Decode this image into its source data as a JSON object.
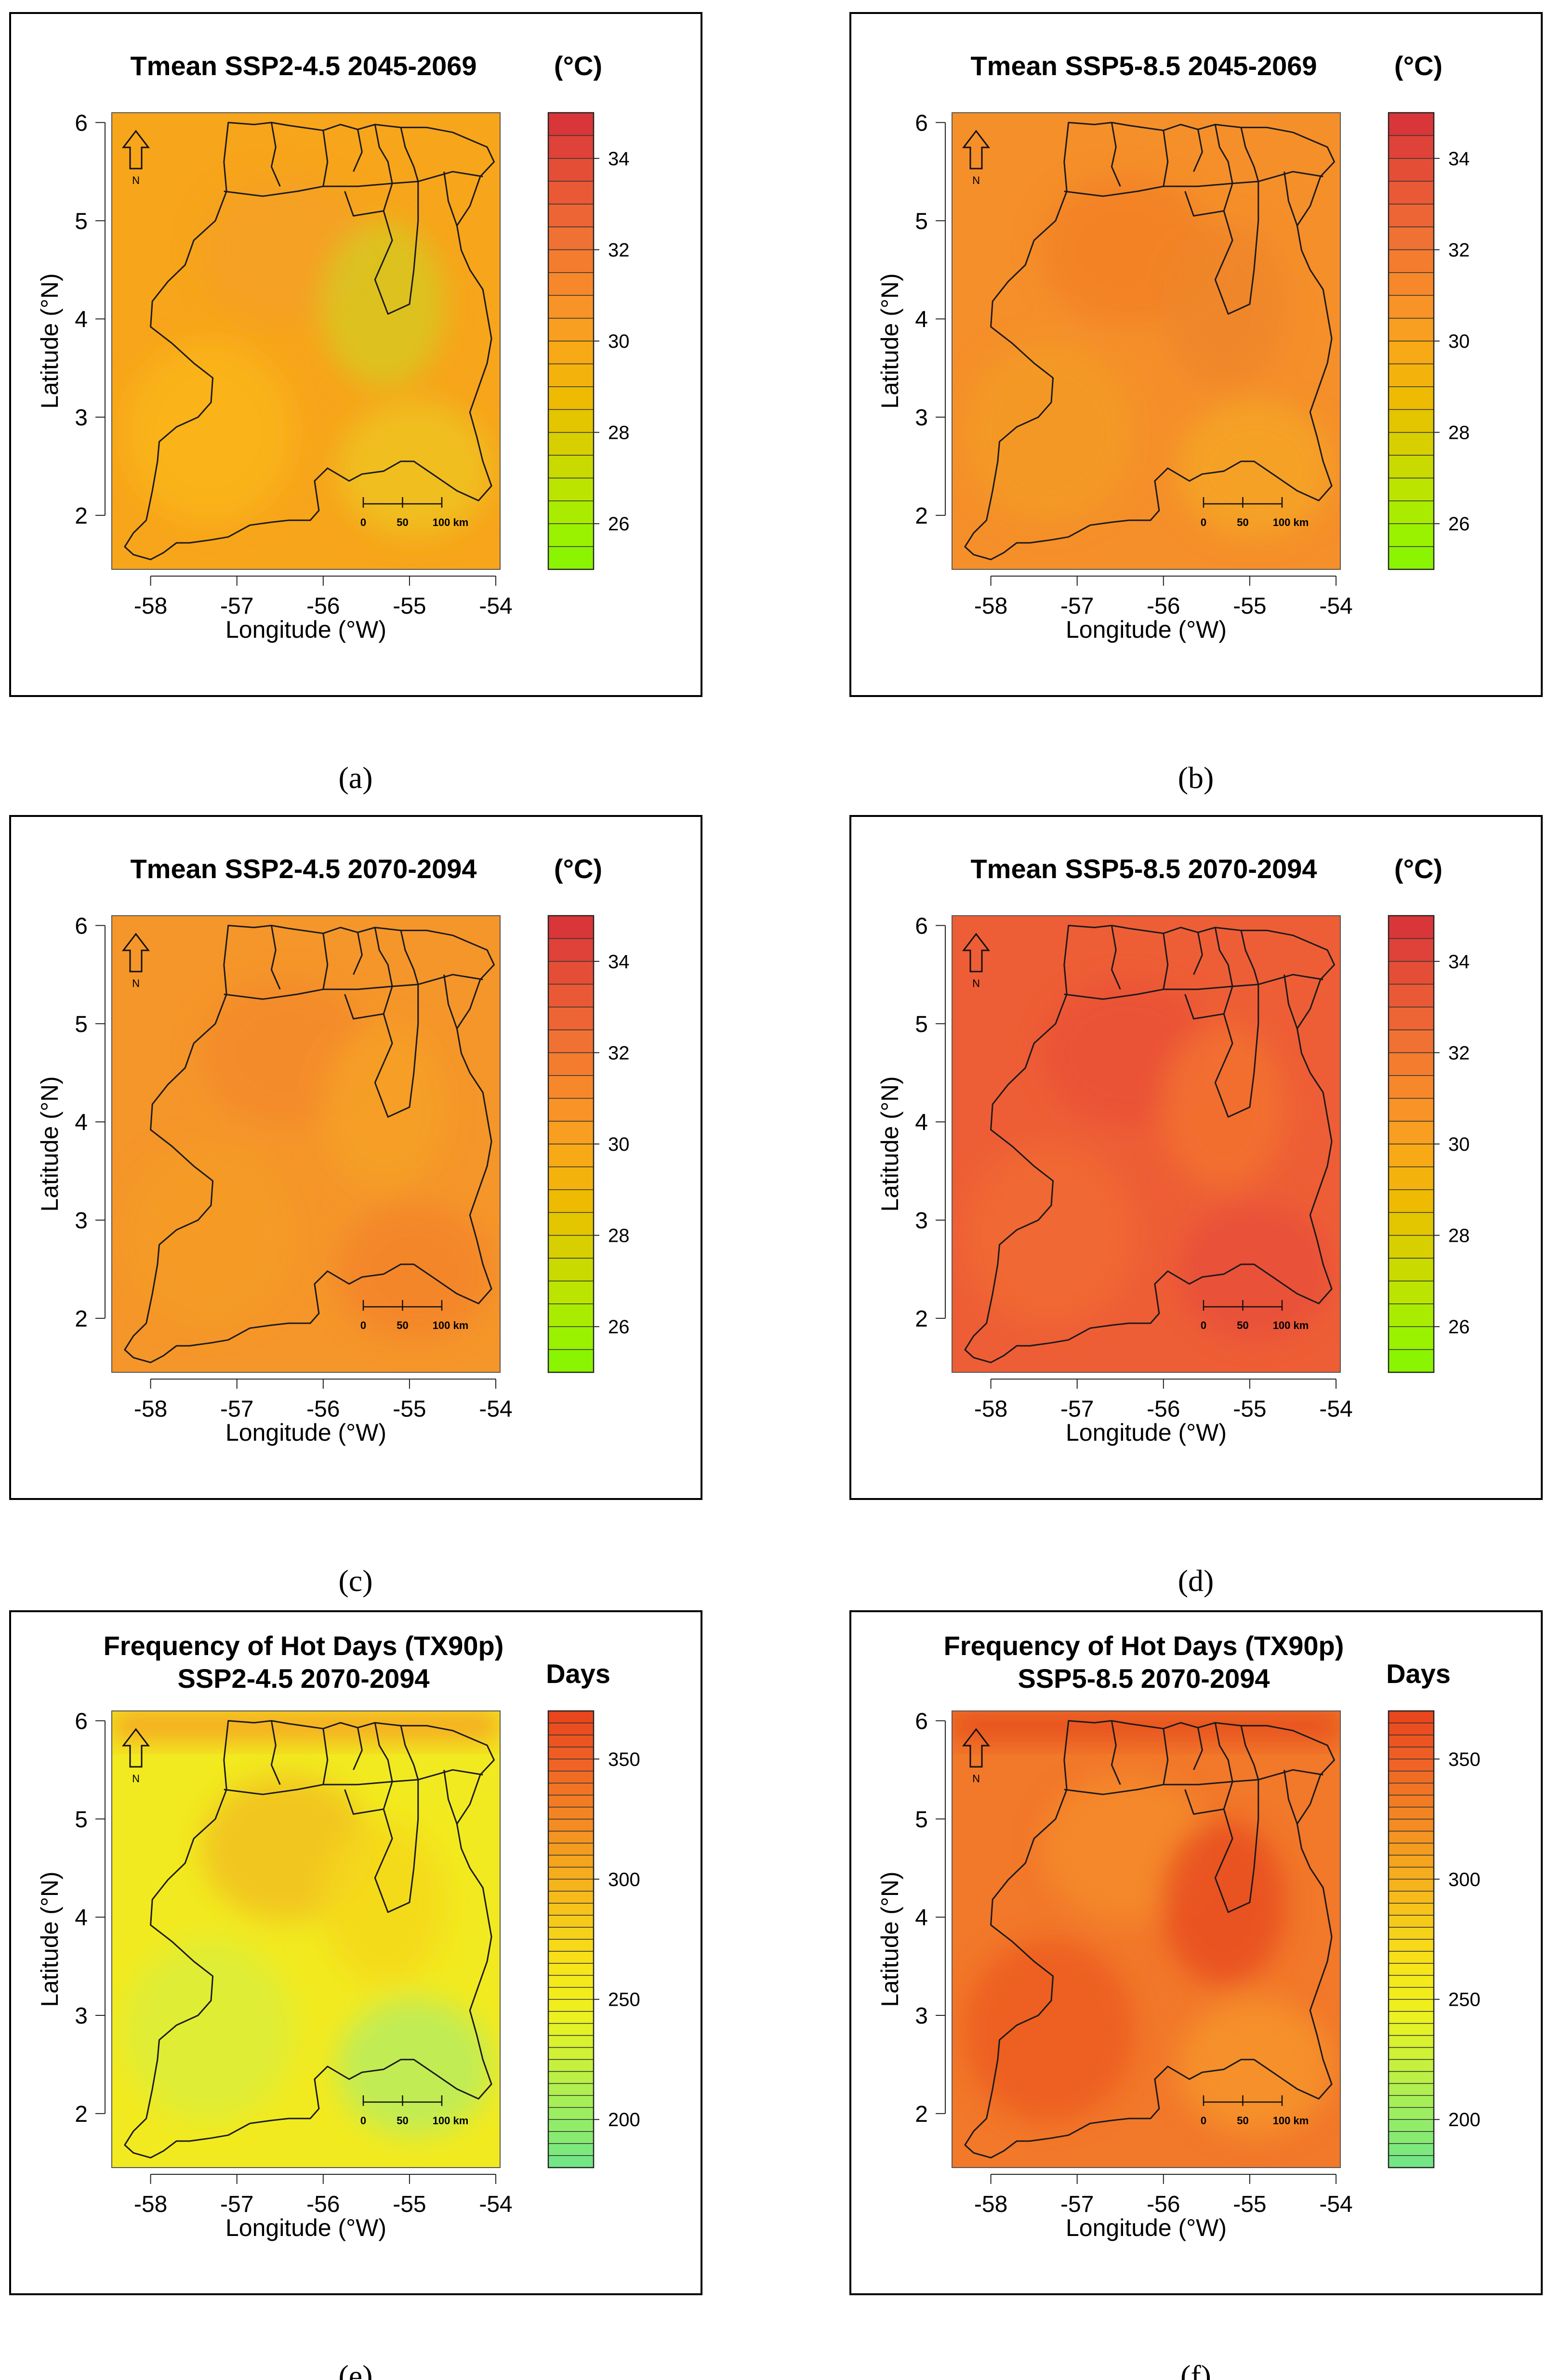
{
  "figure": {
    "panels": [
      {
        "id": "a",
        "caption": "(a)",
        "title_lines": [
          "Tmean  SSP2-4.5 2045-2069"
        ],
        "unit": "(°C)",
        "variable": "Tmean",
        "scenario": "SSP2-4.5",
        "period": "2045-2069",
        "base_color": "#f7a51b",
        "patch_colors": [
          "#f5a023",
          "#fab51a",
          "#eec21f",
          "#d8c722"
        ],
        "legend": {
          "stops": [
            "#83f500",
            "#9ff000",
            "#bde400",
            "#d7cf00",
            "#ecbd00",
            "#f8ad12",
            "#f89a24",
            "#f6852c",
            "#f07034",
            "#ea5a36",
            "#e04637",
            "#d5303a"
          ],
          "bands": 20,
          "range": [
            25,
            35
          ],
          "ticks": [
            "26",
            "28",
            "30",
            "32",
            "34"
          ],
          "tick_values": [
            26,
            28,
            30,
            32,
            34
          ]
        }
      },
      {
        "id": "b",
        "caption": "(b)",
        "title_lines": [
          "Tmean  SSP5-8.5 2045-2069"
        ],
        "unit": "(°C)",
        "variable": "Tmean",
        "scenario": "SSP5-8.5",
        "period": "2045-2069",
        "base_color": "#f58f2a",
        "patch_colors": [
          "#f28027",
          "#f39a26",
          "#f5a424",
          "#ef8528"
        ],
        "legend": {
          "stops": [
            "#83f500",
            "#9ff000",
            "#bde400",
            "#d7cf00",
            "#ecbd00",
            "#f8ad12",
            "#f89a24",
            "#f6852c",
            "#f07034",
            "#ea5a36",
            "#e04637",
            "#d5303a"
          ],
          "bands": 20,
          "range": [
            25,
            35
          ],
          "ticks": [
            "26",
            "28",
            "30",
            "32",
            "34"
          ],
          "tick_values": [
            26,
            28,
            30,
            32,
            34
          ]
        }
      },
      {
        "id": "c",
        "caption": "(c)",
        "title_lines": [
          "Tmean  SSP2-4.5 2070-2094"
        ],
        "unit": "(°C)",
        "variable": "Tmean",
        "scenario": "SSP2-4.5",
        "period": "2070-2094",
        "base_color": "#f5962a",
        "patch_colors": [
          "#f38a2a",
          "#f59b25",
          "#f3842c",
          "#f6a024"
        ],
        "legend": {
          "stops": [
            "#83f500",
            "#9ff000",
            "#bde400",
            "#d7cf00",
            "#ecbd00",
            "#f8ad12",
            "#f89a24",
            "#f6852c",
            "#f07034",
            "#ea5a36",
            "#e04637",
            "#d5303a"
          ],
          "bands": 20,
          "range": [
            25,
            35
          ],
          "ticks": [
            "26",
            "28",
            "30",
            "32",
            "34"
          ],
          "tick_values": [
            26,
            28,
            30,
            32,
            34
          ]
        }
      },
      {
        "id": "d",
        "caption": "(d)",
        "title_lines": [
          "Tmean  SSP5-8.5 2070-2094"
        ],
        "unit": "(°C)",
        "variable": "Tmean",
        "scenario": "SSP5-8.5",
        "period": "2070-2094",
        "base_color": "#ee5e36",
        "patch_colors": [
          "#ea5237",
          "#f06a33",
          "#e8503a",
          "#f27230"
        ],
        "legend": {
          "stops": [
            "#83f500",
            "#9ff000",
            "#bde400",
            "#d7cf00",
            "#ecbd00",
            "#f8ad12",
            "#f89a24",
            "#f6852c",
            "#f07034",
            "#ea5a36",
            "#e04637",
            "#d5303a"
          ],
          "bands": 20,
          "range": [
            25,
            35
          ],
          "ticks": [
            "26",
            "28",
            "30",
            "32",
            "34"
          ],
          "tick_values": [
            26,
            28,
            30,
            32,
            34
          ]
        }
      },
      {
        "id": "e",
        "caption": "(e)",
        "title_lines": [
          "Frequency of Hot Days (TX90p)",
          "SSP2-4.5 2070-2094"
        ],
        "unit": "Days",
        "variable": "Frequency of Hot Days (TX90p)",
        "scenario": "SSP2-4.5",
        "period": "2070-2094",
        "base_color": "#f2ea20",
        "patch_colors": [
          "#f1c01e",
          "#dced3a",
          "#b9ec5e",
          "#f5d81a"
        ],
        "top_band_color": "#f59a24",
        "legend": {
          "stops": [
            "#6ee68a",
            "#98ee62",
            "#c5f03e",
            "#eef21e",
            "#f7e418",
            "#f6c61a",
            "#f5a51e",
            "#f38424",
            "#ef6226",
            "#e8421c"
          ],
          "bands": 38,
          "range": [
            180,
            370
          ],
          "ticks": [
            "200",
            "250",
            "300",
            "350"
          ],
          "tick_values": [
            200,
            250,
            300,
            350
          ]
        }
      },
      {
        "id": "f",
        "caption": "(f)",
        "title_lines": [
          "Frequency of Hot Days (TX90p)",
          "SSP5-8.5 2070-2094"
        ],
        "unit": "Days",
        "variable": "Frequency of Hot Days (TX90p)",
        "scenario": "SSP5-8.5",
        "period": "2070-2094",
        "base_color": "#f2782a",
        "patch_colors": [
          "#f48b2a",
          "#ec5c22",
          "#f6942c",
          "#e84e1e"
        ],
        "top_band_color": "#e4481c",
        "legend": {
          "stops": [
            "#6ee68a",
            "#98ee62",
            "#c5f03e",
            "#eef21e",
            "#f7e418",
            "#f6c61a",
            "#f5a51e",
            "#f38424",
            "#ef6226",
            "#e8421c"
          ],
          "bands": 38,
          "range": [
            180,
            370
          ],
          "ticks": [
            "200",
            "250",
            "300",
            "350"
          ],
          "tick_values": [
            200,
            250,
            300,
            350
          ]
        }
      }
    ],
    "axes": {
      "x_label": "Longitude (°W)",
      "y_label": "Latitude (°N)",
      "lon_range": [
        -58.45,
        -53.95
      ],
      "lat_range": [
        1.45,
        6.1
      ],
      "x_ticks": [
        "-58",
        "-57",
        "-56",
        "-55",
        "-54"
      ],
      "x_tick_values": [
        -58,
        -57,
        -56,
        -55,
        -54
      ],
      "y_ticks": [
        "2",
        "3",
        "4",
        "5",
        "6"
      ],
      "y_tick_values": [
        2,
        3,
        4,
        5,
        6
      ]
    },
    "scale_bar": {
      "labels": [
        "0",
        "50",
        "100 km"
      ]
    },
    "north_arrow": {
      "label": "N"
    },
    "colors": {
      "frame": "#000000",
      "border": "#1a1a1a",
      "background": "#ffffff"
    }
  }
}
